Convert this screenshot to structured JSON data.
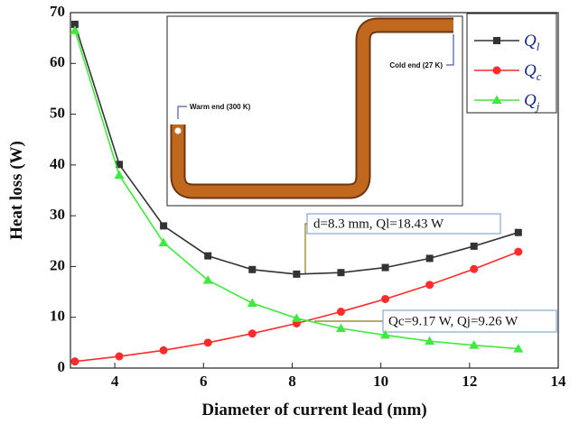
{
  "chart_data": {
    "type": "line",
    "x_label": "Diameter of current lead (mm)",
    "y_label": "Heat loss (W)",
    "x": [
      3.1,
      4.1,
      5.1,
      6.1,
      7.1,
      8.1,
      9.1,
      10.1,
      11.1,
      12.1,
      13.1
    ],
    "series": [
      {
        "name": "Ql",
        "color": "#333333",
        "marker": "square",
        "values": [
          67.7,
          40.1,
          28,
          22.1,
          19.4,
          18.5,
          18.8,
          19.8,
          21.6,
          24,
          26.7
        ]
      },
      {
        "name": "Qc",
        "color": "#ff2a2a",
        "marker": "circle",
        "values": [
          1.3,
          2.3,
          3.5,
          5.0,
          6.8,
          8.8,
          11.1,
          13.6,
          16.4,
          19.5,
          22.9
        ]
      },
      {
        "name": "Qj",
        "color": "#3dea3d",
        "marker": "triangle",
        "values": [
          66.5,
          38,
          24.7,
          17.3,
          12.8,
          9.8,
          7.8,
          6.5,
          5.3,
          4.5,
          3.8
        ]
      }
    ],
    "xlim": [
      3,
      14
    ],
    "xticks": [
      4,
      6,
      8,
      10,
      12,
      14
    ],
    "ylim": [
      0,
      70
    ],
    "yticks": [
      0,
      10,
      20,
      30,
      40,
      50,
      60,
      70
    ],
    "legend": "upper right",
    "annotations": [
      "d=8.3 mm, Ql=18.43 W",
      "Qc=9.17 W, Qj=9.26 W"
    ],
    "inset_labels": [
      "Warm end (300 K)",
      "Cold end (27 K)"
    ]
  }
}
